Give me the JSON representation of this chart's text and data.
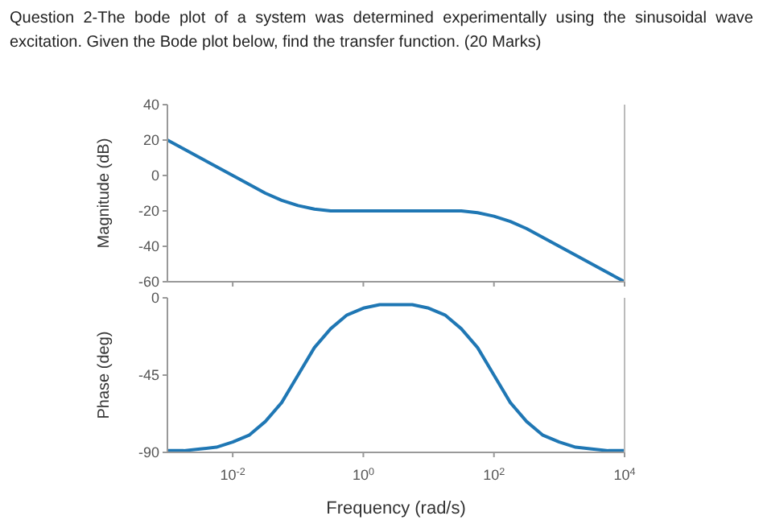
{
  "chart_data": [
    {
      "type": "line",
      "title": "Question 2-The bode plot of a system was determined experimentally using the sinusoidal wave excitation. Given the Bode plot below, find the transfer function. (20 Marks)",
      "ylabel": "Magnitude (dB)",
      "log": "x",
      "xlim": [
        0.001,
        10000
      ],
      "xticks": [
        {
          "value": 0.01,
          "label": null
        },
        {
          "value": 1,
          "label": null
        },
        {
          "value": 100,
          "label": null
        },
        {
          "value": 10000,
          "label": null
        }
      ],
      "ylim": [
        -60,
        40
      ],
      "yticks": [
        -60,
        -40,
        -20,
        0,
        20,
        40
      ],
      "tick_labels": "y",
      "grid": false,
      "legend": false,
      "marker": "none",
      "x": [
        0.001,
        0.00178,
        0.00316,
        0.00562,
        0.01,
        0.0178,
        0.0316,
        0.0562,
        0.1,
        0.178,
        0.316,
        0.562,
        1,
        1.78,
        3.16,
        5.62,
        10,
        17.8,
        31.6,
        56.2,
        100,
        178,
        316,
        562,
        1000,
        1780,
        3160,
        5620,
        10000
      ],
      "series": [
        {
          "color": "#1f77b4",
          "values": [
            20,
            15,
            10,
            5,
            0,
            -5,
            -10,
            -14,
            -17,
            -19,
            -20,
            -20,
            -20,
            -20,
            -20,
            -20,
            -20,
            -20,
            -20,
            -21,
            -23,
            -26,
            -30,
            -35,
            -40,
            -45,
            -50,
            -55,
            -60
          ]
        }
      ]
    },
    {
      "type": "line",
      "xlabel": "Frequency  (rad/s)",
      "ylabel": "Phase (deg)",
      "log": "x",
      "xlim": [
        0.001,
        10000
      ],
      "xticks": [
        {
          "value": 0.01,
          "label": "10$^{-2}$"
        },
        {
          "value": 1,
          "label": "10$^{0}$"
        },
        {
          "value": 100,
          "label": "10$^{2}$"
        },
        {
          "value": 10000,
          "label": "10$^{4}$"
        }
      ],
      "ylim": [
        -90,
        0
      ],
      "yticks": [
        -90,
        -45,
        0
      ],
      "grid": false,
      "legend": false,
      "marker": "none",
      "x": [
        0.001,
        0.00178,
        0.00316,
        0.00562,
        0.01,
        0.0178,
        0.0316,
        0.0562,
        0.1,
        0.178,
        0.316,
        0.562,
        1,
        1.78,
        3.16,
        5.62,
        10,
        17.8,
        31.6,
        56.2,
        100,
        178,
        316,
        562,
        1000,
        1780,
        3160,
        5620,
        10000
      ],
      "series": [
        {
          "color": "#1f77b4",
          "values": [
            -89,
            -89,
            -88,
            -87,
            -84,
            -80,
            -72,
            -61,
            -45,
            -29,
            -18,
            -10,
            -6,
            -4,
            -4,
            -4,
            -6,
            -10,
            -18,
            -29,
            -45,
            -61,
            -72,
            -80,
            -84,
            -87,
            -88,
            -89,
            -89
          ]
        }
      ]
    }
  ]
}
